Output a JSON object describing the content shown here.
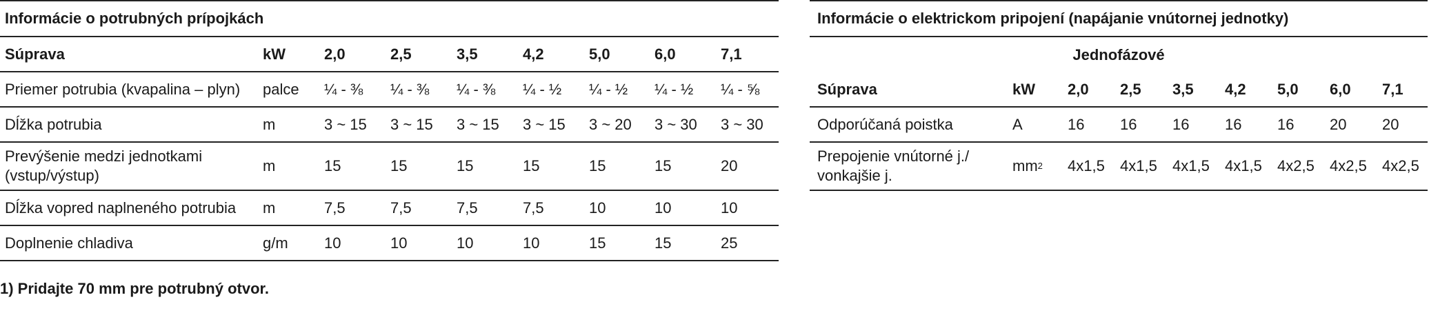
{
  "left": {
    "title": "Informácie o potrubných prípojkách",
    "header": {
      "label": "Súprava",
      "unit": "kW",
      "values": [
        "2,0",
        "2,5",
        "3,5",
        "4,2",
        "5,0",
        "6,0",
        "7,1"
      ]
    },
    "rows": [
      {
        "label": "Priemer potrubia (kvapalina – plyn)",
        "unit": "palce",
        "values": [
          "¼ - ⅜",
          "¼ - ⅜",
          "¼ - ⅜",
          "¼ - ½",
          "¼ - ½",
          "¼ - ½",
          "¼ - ⅝"
        ]
      },
      {
        "label": "Dĺžka potrubia",
        "unit": "m",
        "values": [
          "3 ~ 15",
          "3 ~ 15",
          "3 ~ 15",
          "3 ~ 15",
          "3 ~ 20",
          "3 ~ 30",
          "3 ~ 30"
        ]
      },
      {
        "label_line1": "Prevýšenie medzi jednotkami",
        "label_line2": "(vstup/výstup)",
        "unit": "m",
        "values": [
          "15",
          "15",
          "15",
          "15",
          "15",
          "15",
          "20"
        ]
      },
      {
        "label": "Dĺžka vopred naplneného potrubia",
        "unit": "m",
        "values": [
          "7,5",
          "7,5",
          "7,5",
          "7,5",
          "10",
          "10",
          "10"
        ]
      },
      {
        "label": "Doplnenie chladiva",
        "unit": "g/m",
        "values": [
          "10",
          "10",
          "10",
          "10",
          "15",
          "15",
          "25"
        ]
      }
    ],
    "footnote": "1) Pridajte 70 mm pre potrubný otvor."
  },
  "right": {
    "title": "Informácie o elektrickom pripojení (napájanie vnútornej jednotky)",
    "subheader": "Jednofázové",
    "header": {
      "label": "Súprava",
      "unit": "kW",
      "values": [
        "2,0",
        "2,5",
        "3,5",
        "4,2",
        "5,0",
        "6,0",
        "7,1"
      ]
    },
    "rows": [
      {
        "label": "Odporúčaná poistka",
        "unit": "A",
        "values": [
          "16",
          "16",
          "16",
          "16",
          "16",
          "20",
          "20"
        ]
      },
      {
        "label_line1": "Prepojenie vnútorné j./",
        "label_line2": "vonkajšie j.",
        "unit": "mm",
        "unit_sup": "2",
        "values": [
          "4x1,5",
          "4x1,5",
          "4x1,5",
          "4x1,5",
          "4x2,5",
          "4x2,5",
          "4x2,5"
        ]
      }
    ]
  }
}
